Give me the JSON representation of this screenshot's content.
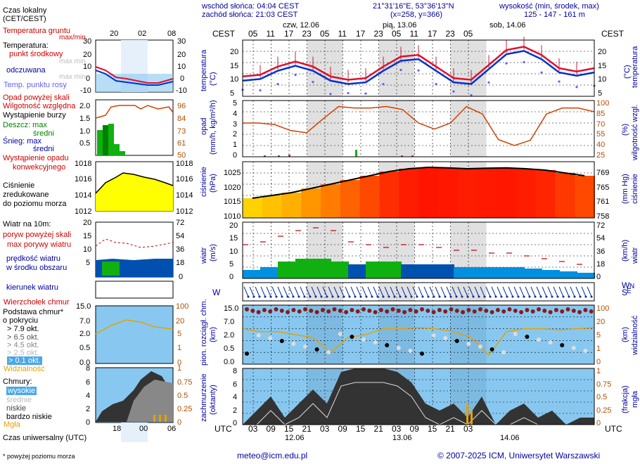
{
  "header": {
    "sunrise": "wschód słońca: 04:04 CEST",
    "sunset": "zachód słońca: 21:03 CEST",
    "coords": "21°31'16\"E, 53°36'13\"N",
    "grid": "(x=258, y=366)",
    "elev_title": "wysokość (min, środek, max)",
    "elev_values": "125 - 147 - 161 m"
  },
  "left": {
    "time_local": "Czas lokalny",
    "time_local2": "(CET/CEST)",
    "time_top_ticks": [
      "20",
      "02",
      "08"
    ],
    "temp_soil": "Temperatura gruntu",
    "maxmin": "max/min",
    "temp_label": "Temperatura:",
    "temp_mid": "punkt środkowy",
    "temp_maxmin": "max min",
    "temp_felt": "odczuwana",
    "temp_felt_maxmin": "max min",
    "temp_dew": "Temp. punktu rosy",
    "temp_ticks": [
      "30",
      "20",
      "10",
      "0",
      "-10"
    ],
    "rain_above": "Opad powyżej skali",
    "humidity": "Wilgotność względna",
    "storm": "Wystąpienie burzy",
    "rain_max": "Deszcz: max",
    "rain_mid": "średni",
    "snow_max": "Śnieg: max",
    "snow_mid": "średni",
    "conv": "Wystąpienie opadu",
    "conv2": "konwekcyjnego",
    "rain_ticks": [
      "2.0",
      "1.5",
      "1.0",
      "0.5"
    ],
    "hum_ticks": [
      "96",
      "84",
      "73",
      "61",
      "50"
    ],
    "press1": "Ciśnienie",
    "press2": "zredukowane",
    "press3": "do poziomu morza",
    "press_ticks": [
      "1018",
      "1016",
      "1014",
      "1012"
    ],
    "wind_label": "Wiatr na 10m:",
    "gust_above": "poryw powyżej skali",
    "gust_max": "max porywy wiatru",
    "wind_speed": "prędkość wiatru",
    "wind_speed2": "w środku obszaru",
    "wind_ticks": [
      "20",
      "15",
      "10",
      "5"
    ],
    "wind_kmh_ticks": [
      "72",
      "54",
      "36",
      "18",
      "0"
    ],
    "wind_dir": "kierunek wiatru",
    "cloud_top": "Wierzchołek chmur",
    "cloud_base": "Podstawa chmur*",
    "cloud_cover": "o pokryciu",
    "okt": [
      "> 7.9 okt.",
      "> 6.5 okt.",
      "> 4.5 okt.",
      "> 2.5 okt.",
      "> 0.1 okt."
    ],
    "visibility": "Widzialność",
    "base_ticks": [
      "15.0",
      "7.0",
      "2.0",
      "0.5",
      "0.0"
    ],
    "vis_ticks": [
      "100",
      "20",
      "5",
      "1",
      "0"
    ],
    "clouds": "Chmury:",
    "c_high": "wysokie",
    "c_mid": "średnie",
    "c_low": "niskie",
    "c_vlow": "bardzo niskie",
    "fog": "Mgła",
    "cl_ticks": [
      "8",
      "6",
      "4",
      "2",
      "0"
    ],
    "fog_ticks": [
      "1",
      "0.75",
      "0.5",
      "0.25",
      "0"
    ],
    "utc_bottom_ticks": [
      "18",
      "00",
      "06"
    ],
    "utc_label": "Czas uniwersalny (UTC)",
    "footnote": "* powyżej poziomu morza"
  },
  "main": {
    "cest": "CEST",
    "utc": "UTC",
    "days_top": [
      "czw, 12.06",
      "pią, 13.06",
      "sob, 14.06"
    ],
    "hours_top": [
      "05",
      "11",
      "17",
      "23",
      "05",
      "11",
      "17",
      "23",
      "05",
      "11",
      "17",
      "23",
      "05"
    ],
    "hours_bottom": [
      "03",
      "09",
      "15",
      "21",
      "03",
      "09",
      "15",
      "21",
      "03",
      "09",
      "15",
      "21",
      "03"
    ],
    "days_bottom": [
      "12.06",
      "13.06",
      "14.06"
    ],
    "temp_axis": "temperatura",
    "temp_unit": "(°C)",
    "temp_ticks": [
      "20",
      "15",
      "10",
      "5"
    ],
    "rain_axis": "opad",
    "rain_unit": "(mm/h, kg/m²/h)",
    "rain_ticks": [
      "5",
      "4",
      "3",
      "2",
      "1",
      "0"
    ],
    "hum_axis": "wilgotność wzgl.",
    "hum_unit": "(%)",
    "hum_ticks": [
      "100",
      "85",
      "70",
      "55",
      "40",
      "25"
    ],
    "press_axis": "ciśnienie",
    "press_unit": "(hPa)",
    "press_ticks": [
      "1025",
      "1020",
      "1015",
      "1010"
    ],
    "press_mm_axis": "ciśnienie",
    "press_mm_unit": "(mm Hg)",
    "press_mm_ticks": [
      "769",
      "765",
      "761",
      "758"
    ],
    "wind_axis": "wiatr",
    "wind_unit": "(m/s)",
    "wind_ticks": [
      "20",
      "15",
      "10",
      "5",
      "0"
    ],
    "wind_kmh_axis": "wiatr",
    "wind_kmh_unit": "(km/h)",
    "wind_kmh_ticks": [
      "72",
      "54",
      "36",
      "18",
      "0"
    ],
    "cb_axis": "pion. rozciągł. chm.",
    "cb_unit": "(km)",
    "cb_ticks": [
      "15.0",
      "7.0",
      "2.0",
      "0.5",
      "0.0"
    ],
    "vis_axis": "widzialność",
    "vis_unit": "(km)",
    "vis_ticks": [
      "100",
      "20",
      "5",
      "1",
      "0"
    ],
    "cl_axis": "zachmurzenie",
    "cl_unit": "(oktanty)",
    "cl_ticks": [
      "8",
      "6",
      "4",
      "2",
      "0"
    ],
    "fog_axis": "mgła",
    "fog_unit": "(frakcja)",
    "fog_ticks": [
      "1",
      "0.75",
      "0.5",
      "0.25",
      "0"
    ],
    "compass": [
      "W",
      "S",
      "N",
      "E"
    ]
  },
  "footer": {
    "email": "meteo@icm.edu.pl",
    "copyright": "© 2007-2025 ICM, Uniwersytet Warszawski"
  },
  "colors": {
    "temp": "#e0102a",
    "felt": "#0030d0",
    "dew": "#6060ff",
    "humidity": "#d04000",
    "pressure_hi": "#d00000",
    "pressure_lo": "#ffd000",
    "wind_fill": "#0070d0",
    "wind_green": "#10b010",
    "sky": "#88c8f0",
    "gust": "#c00000"
  }
}
